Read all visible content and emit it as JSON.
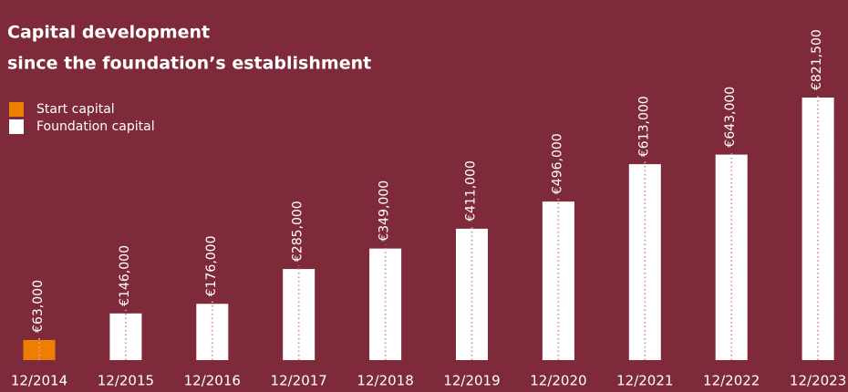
{
  "chart_data": {
    "type": "bar",
    "title": "Capital development",
    "subtitle": "since the foundation’s establishment",
    "categories": [
      "12/2014",
      "12/2015",
      "12/2016",
      "12/2017",
      "12/2018",
      "12/2019",
      "12/2020",
      "12/2021",
      "12/2022",
      "12/2023"
    ],
    "series": [
      {
        "name": "Start capital",
        "color": "#ef7d00",
        "values": [
          63000,
          null,
          null,
          null,
          null,
          null,
          null,
          null,
          null,
          null
        ],
        "value_labels": [
          "€63,000",
          null,
          null,
          null,
          null,
          null,
          null,
          null,
          null,
          null
        ]
      },
      {
        "name": "Foundation capital",
        "color": "#ffffff",
        "values": [
          null,
          146000,
          176000,
          285000,
          349000,
          411000,
          496000,
          613000,
          643000,
          821500
        ],
        "value_labels": [
          null,
          "€146,000",
          "€176,000",
          "€285,000",
          "€349,000",
          "€411,000",
          "€496,000",
          "€613,000",
          "€643,000",
          "€821,500"
        ]
      }
    ]
  }
}
